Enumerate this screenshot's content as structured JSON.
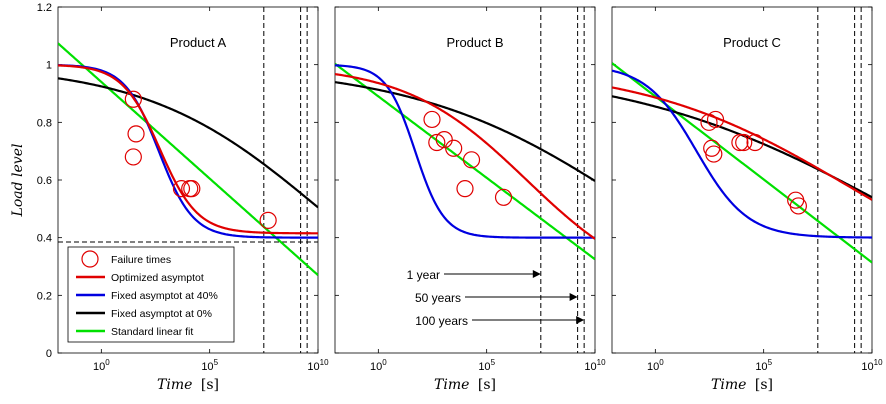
{
  "chart_data": {
    "type": "line",
    "xscale": "log",
    "xlim": [
      0.01,
      10000000000
    ],
    "ylim": [
      0,
      1.2
    ],
    "xticks": [
      {
        "value": 1,
        "label": "10",
        "exp": "0"
      },
      {
        "value": 100000,
        "label": "10",
        "exp": "5"
      },
      {
        "value": 10000000000,
        "label": "10",
        "exp": "10"
      }
    ],
    "yticks": [
      "0",
      "0.2",
      "0.4",
      "0.6",
      "0.8",
      "1",
      "1.2"
    ],
    "ylabel": "Load level",
    "xlabel": "Time",
    "xlabel_unit": "[s]",
    "grid": false,
    "legend_position": "bottom-left (first panel)",
    "legend": [
      {
        "label": "Failure times",
        "marker": "circle",
        "color": "#e00000"
      },
      {
        "label": "Optimized asymptot",
        "color": "#e00000"
      },
      {
        "label": "Fixed asymptot at 40%",
        "color": "#0000e0"
      },
      {
        "label": "Fixed asymptot at 0%",
        "color": "#000000"
      },
      {
        "label": "Standard linear fit",
        "color": "#00e000"
      }
    ],
    "vertical_lines_seconds": [
      31536000,
      1576800000,
      3153600000
    ],
    "horizontal_dashed_panel_a": 0.385,
    "annotations": [
      "1 year",
      "50 years",
      "100 years"
    ],
    "panels": [
      {
        "title": "Product A",
        "failure_times": [
          {
            "x": 30,
            "y": 0.88
          },
          {
            "x": 40,
            "y": 0.76
          },
          {
            "x": 30,
            "y": 0.68
          },
          {
            "x": 5000,
            "y": 0.57
          },
          {
            "x": 12000,
            "y": 0.57
          },
          {
            "x": 15000,
            "y": 0.57
          },
          {
            "x": 50000000,
            "y": 0.46
          }
        ],
        "series": [
          {
            "name": "Optimized asymptot",
            "color": "#e00000",
            "params": {
              "a": 0.415,
              "t0": 500,
              "b": 0.5
            }
          },
          {
            "name": "Fixed asymptot at 40%",
            "color": "#0000e0",
            "params": {
              "a": 0.4,
              "t0": 450,
              "b": 0.55
            }
          },
          {
            "name": "Fixed asymptot at 0%",
            "color": "#000000",
            "params": {
              "a": 0.0,
              "t0": 12000000000,
              "b": 0.108
            }
          },
          {
            "name": "Standard linear fit",
            "color": "#00e000",
            "linear": {
              "intercept": 0.94,
              "slope": -0.067
            }
          }
        ]
      },
      {
        "title": "Product B",
        "failure_times": [
          {
            "x": 300,
            "y": 0.81
          },
          {
            "x": 500,
            "y": 0.73
          },
          {
            "x": 1100,
            "y": 0.74
          },
          {
            "x": 3000,
            "y": 0.71
          },
          {
            "x": 10000,
            "y": 0.57
          },
          {
            "x": 20000,
            "y": 0.67
          },
          {
            "x": 600000,
            "y": 0.54
          }
        ],
        "series": [
          {
            "name": "Optimized asymptot",
            "color": "#e00000",
            "params": {
              "a": 0.2,
              "t0": 7000000,
              "b": 0.155
            }
          },
          {
            "name": "Fixed asymptot at 40%",
            "color": "#0000e0",
            "params": {
              "a": 0.4,
              "t0": 50,
              "b": 0.65
            }
          },
          {
            "name": "Fixed asymptot at 0%",
            "color": "#000000",
            "params": {
              "a": 0.0,
              "t0": 1000000000000,
              "b": 0.085
            }
          },
          {
            "name": "Standard linear fit",
            "color": "#00e000",
            "linear": {
              "intercept": 0.89,
              "slope": -0.0565
            }
          }
        ]
      },
      {
        "title": "Product C",
        "failure_times": [
          {
            "x": 300,
            "y": 0.8
          },
          {
            "x": 600,
            "y": 0.81
          },
          {
            "x": 400,
            "y": 0.71
          },
          {
            "x": 500,
            "y": 0.69
          },
          {
            "x": 8000,
            "y": 0.73
          },
          {
            "x": 12000,
            "y": 0.73
          },
          {
            "x": 40000,
            "y": 0.73
          },
          {
            "x": 3000000,
            "y": 0.53
          },
          {
            "x": 4000000,
            "y": 0.51
          }
        ],
        "series": [
          {
            "name": "Optimized asymptot",
            "color": "#e00000",
            "params": {
              "a": 0.15,
              "t0": 1000000000,
              "b": 0.09
            }
          },
          {
            "name": "Fixed asymptot at 40%",
            "color": "#0000e0",
            "params": {
              "a": 0.4,
              "t0": 80,
              "b": 0.37
            }
          },
          {
            "name": "Fixed asymptot at 0%",
            "color": "#000000",
            "params": {
              "a": 0.0,
              "t0": 100000000000,
              "b": 0.07
            }
          },
          {
            "name": "Standard linear fit",
            "color": "#00e000",
            "linear": {
              "intercept": 0.89,
              "slope": -0.0576
            }
          }
        ]
      }
    ]
  }
}
